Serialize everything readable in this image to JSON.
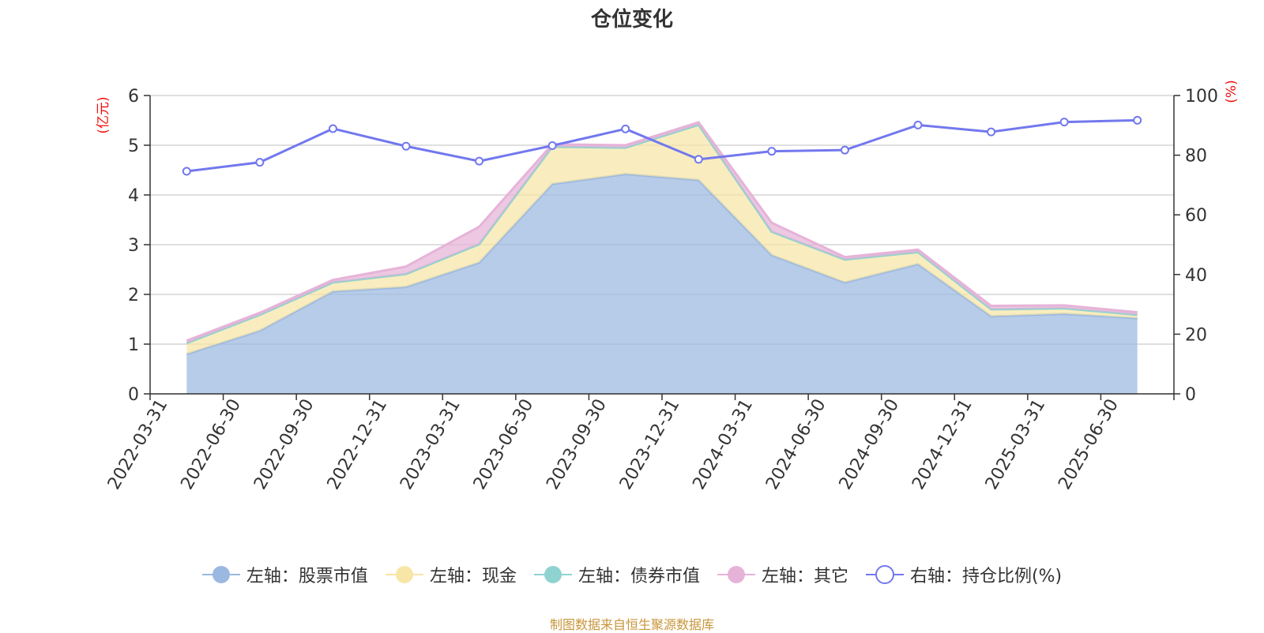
{
  "chart_data": {
    "type": "area",
    "title": "仓位变化",
    "left_axis_unit": "(亿元)",
    "right_axis_unit": "(%)",
    "ylim_left": [
      0,
      6
    ],
    "yticks_left": [
      "0",
      "1",
      "2",
      "3",
      "4",
      "5",
      "6"
    ],
    "ylim_right": [
      0,
      100
    ],
    "yticks_right": [
      "0",
      "20",
      "40",
      "60",
      "80",
      "100"
    ],
    "grid": true,
    "legend_position": "bottom",
    "categories": [
      "2022-03-31",
      "2022-06-30",
      "2022-09-30",
      "2022-12-31",
      "2023-03-31",
      "2023-06-30",
      "2023-09-30",
      "2023-12-31",
      "2024-03-31",
      "2024-06-30",
      "2024-09-30",
      "2024-12-31",
      "2025-03-31",
      "2025-06-30"
    ],
    "series": [
      {
        "name": "左轴：股票市值",
        "axis": "left",
        "kind": "stacked-area",
        "color": "#9bb8e0",
        "values": [
          0.8,
          1.27,
          2.06,
          2.15,
          2.64,
          4.22,
          4.42,
          4.3,
          2.79,
          2.24,
          2.61,
          1.56,
          1.61,
          1.52
        ]
      },
      {
        "name": "左轴：现金",
        "axis": "left",
        "kind": "stacked-area",
        "color": "#f7e6a6",
        "values": [
          0.22,
          0.32,
          0.18,
          0.26,
          0.37,
          0.75,
          0.53,
          1.11,
          0.47,
          0.46,
          0.24,
          0.14,
          0.11,
          0.07
        ]
      },
      {
        "name": "左轴：债券市值",
        "axis": "left",
        "kind": "stacked-area",
        "color": "#8fd3d0",
        "values": [
          0,
          0,
          0,
          0,
          0,
          0,
          0,
          0,
          0,
          0,
          0,
          0,
          0,
          0
        ]
      },
      {
        "name": "左轴：其它",
        "axis": "left",
        "kind": "stacked-area",
        "color": "#e6b3d8",
        "values": [
          0.05,
          0.04,
          0.05,
          0.15,
          0.35,
          0.05,
          0.05,
          0.05,
          0.18,
          0.05,
          0.05,
          0.07,
          0.06,
          0.05
        ]
      },
      {
        "name": "右轴：持仓比例(%)",
        "axis": "right",
        "kind": "line",
        "color": "#7278ee",
        "values": [
          74.6,
          77.6,
          88.9,
          83.0,
          78.0,
          83.2,
          88.8,
          78.6,
          81.3,
          81.7,
          90.1,
          87.8,
          91.1,
          91.7
        ]
      }
    ],
    "source_note": "制图数据来自恒生聚源数据库"
  }
}
